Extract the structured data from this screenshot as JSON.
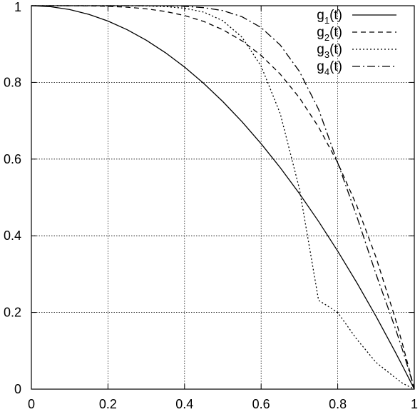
{
  "chart_data": {
    "type": "line",
    "title": "",
    "xlabel": "",
    "ylabel": "",
    "xlim": [
      0,
      1
    ],
    "ylim": [
      0,
      1
    ],
    "xticks": [
      "0",
      "0.2",
      "0.4",
      "0.6",
      "0.8",
      "1"
    ],
    "yticks": [
      "0",
      "0.2",
      "0.4",
      "0.6",
      "0.8",
      "1"
    ],
    "grid": true,
    "legend_position": "top-right",
    "x": [
      0,
      0.05,
      0.1,
      0.15,
      0.2,
      0.25,
      0.3,
      0.35,
      0.4,
      0.45,
      0.5,
      0.55,
      0.6,
      0.65,
      0.7,
      0.75,
      0.8,
      0.85,
      0.9,
      0.95,
      0.97,
      0.99,
      1
    ],
    "series": [
      {
        "name": "g",
        "sub": "1",
        "suffix": "(t)",
        "style": "solid",
        "values": [
          1,
          0.9975,
          0.99,
          0.9775,
          0.96,
          0.9375,
          0.91,
          0.8775,
          0.84,
          0.7975,
          0.75,
          0.6975,
          0.64,
          0.5775,
          0.51,
          0.4375,
          0.36,
          0.2775,
          0.19,
          0.0975,
          0.0591,
          0.0199,
          0
        ]
      },
      {
        "name": "g",
        "sub": "2",
        "suffix": "(t)",
        "style": "dashed",
        "values": [
          1,
          1.0,
          0.9999,
          0.9995,
          0.9984,
          0.9961,
          0.9919,
          0.985,
          0.9744,
          0.959,
          0.9375,
          0.9085,
          0.8704,
          0.8215,
          0.7599,
          0.6836,
          0.5904,
          0.478,
          0.3439,
          0.1855,
          0.1147,
          0.0394,
          0
        ]
      },
      {
        "name": "g",
        "sub": "3",
        "suffix": "(t)",
        "style": "dotted",
        "values": [
          1,
          1.0,
          1.0,
          1.0,
          0.9999,
          0.9998,
          0.9993,
          0.9978,
          0.9934,
          0.9834,
          0.9609,
          0.9179,
          0.8425,
          0.7183,
          0.5225,
          0.2318,
          0.2,
          0.13,
          0.07,
          0.03,
          0.015,
          0.005,
          0
        ]
      },
      {
        "name": "g",
        "sub": "4",
        "suffix": "(t)",
        "style": "dashdot",
        "values": [
          1,
          1.0,
          1.0,
          1.0,
          1.0,
          1.0,
          0.9999,
          0.9996,
          0.9984,
          0.995,
          0.9873,
          0.9713,
          0.943,
          0.8974,
          0.8286,
          0.7299,
          0.5904,
          0.45,
          0.3,
          0.16,
          0.1,
          0.035,
          0
        ]
      }
    ]
  }
}
